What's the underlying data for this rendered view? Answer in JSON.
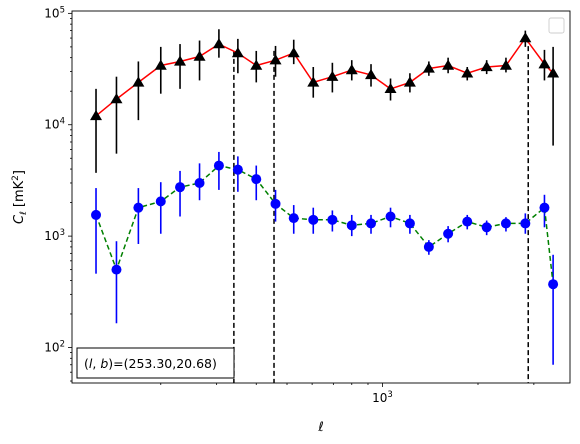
{
  "chart_data": {
    "type": "scatter",
    "title": "",
    "xlabel": "ℓ",
    "ylabel": "C_ℓ [mK²]",
    "xscale": "log",
    "yscale": "log",
    "xlim": [
      105,
      3900
    ],
    "ylim": [
      48,
      105000
    ],
    "x_major_ticks": [
      {
        "value": 1000,
        "label": "10",
        "exp": "3"
      }
    ],
    "y_major_ticks": [
      {
        "value": 100,
        "label": "10",
        "exp": "2"
      },
      {
        "value": 1000,
        "label": "10",
        "exp": "3"
      },
      {
        "value": 10000,
        "label": "10",
        "exp": "4"
      },
      {
        "value": 100000,
        "label": "10",
        "exp": "5"
      }
    ],
    "grid": false,
    "legend": "top-right (empty)",
    "annotation": "(l, b)=(253.30,20.68)",
    "vlines": [
      {
        "x": 340,
        "y_range": [
          48,
          46000
        ]
      },
      {
        "x": 455,
        "y_range": [
          48,
          46000
        ]
      },
      {
        "x": 2880,
        "y_range": [
          48,
          60000
        ]
      }
    ],
    "series": [
      {
        "color": "#ff0000",
        "marker_color": "#000000",
        "err_color": "#000000",
        "marker": "triangle",
        "linestyle": "solid",
        "x": [
          125,
          145,
          170,
          200,
          230,
          265,
          305,
          350,
          400,
          460,
          525,
          605,
          695,
          800,
          920,
          1060,
          1220,
          1400,
          1610,
          1850,
          2130,
          2450,
          2820,
          3240,
          3450
        ],
        "y": [
          12000,
          17000,
          24000,
          34000,
          37000,
          41000,
          53000,
          44000,
          34000,
          38000,
          44000,
          24000,
          27000,
          31000,
          28000,
          21000,
          24000,
          32000,
          34000,
          29000,
          33000,
          34000,
          60000,
          35000,
          29000
        ],
        "y_low": [
          3700,
          5500,
          11000,
          19000,
          21000,
          25000,
          40000,
          29000,
          24000,
          27000,
          35000,
          17500,
          19500,
          25000,
          22000,
          16500,
          19500,
          27500,
          29000,
          25000,
          28500,
          29500,
          50000,
          25000,
          6500
        ],
        "y_high": [
          21000,
          27000,
          37000,
          50000,
          53000,
          57000,
          72000,
          59000,
          46000,
          51000,
          58000,
          33000,
          36000,
          38000,
          35000,
          26000,
          29000,
          37000,
          40000,
          33000,
          38000,
          40000,
          70000,
          47000,
          50000
        ]
      },
      {
        "color": "#008000",
        "marker_color": "#0000ff",
        "err_color": "#0000ff",
        "marker": "circle",
        "linestyle": "dashed",
        "x": [
          125,
          145,
          170,
          200,
          230,
          265,
          305,
          350,
          400,
          460,
          525,
          605,
          695,
          800,
          920,
          1060,
          1220,
          1400,
          1610,
          1850,
          2130,
          2450,
          2820,
          3240,
          3450
        ],
        "y": [
          1550,
          500,
          1800,
          2050,
          2750,
          3000,
          4300,
          3950,
          3250,
          1950,
          1450,
          1400,
          1400,
          1250,
          1300,
          1500,
          1300,
          800,
          1050,
          1350,
          1200,
          1300,
          1300,
          1800,
          370
        ],
        "y_low": [
          460,
          165,
          850,
          1050,
          1500,
          2100,
          2600,
          2500,
          2100,
          1350,
          1050,
          1050,
          1100,
          1000,
          1050,
          1200,
          1050,
          680,
          880,
          1150,
          1020,
          1100,
          1050,
          1200,
          70
        ],
        "y_high": [
          2700,
          900,
          2700,
          3050,
          3850,
          4500,
          5700,
          5200,
          4300,
          2600,
          1900,
          1800,
          1700,
          1550,
          1550,
          1800,
          1550,
          920,
          1230,
          1550,
          1380,
          1480,
          1600,
          2350,
          680
        ]
      }
    ]
  }
}
